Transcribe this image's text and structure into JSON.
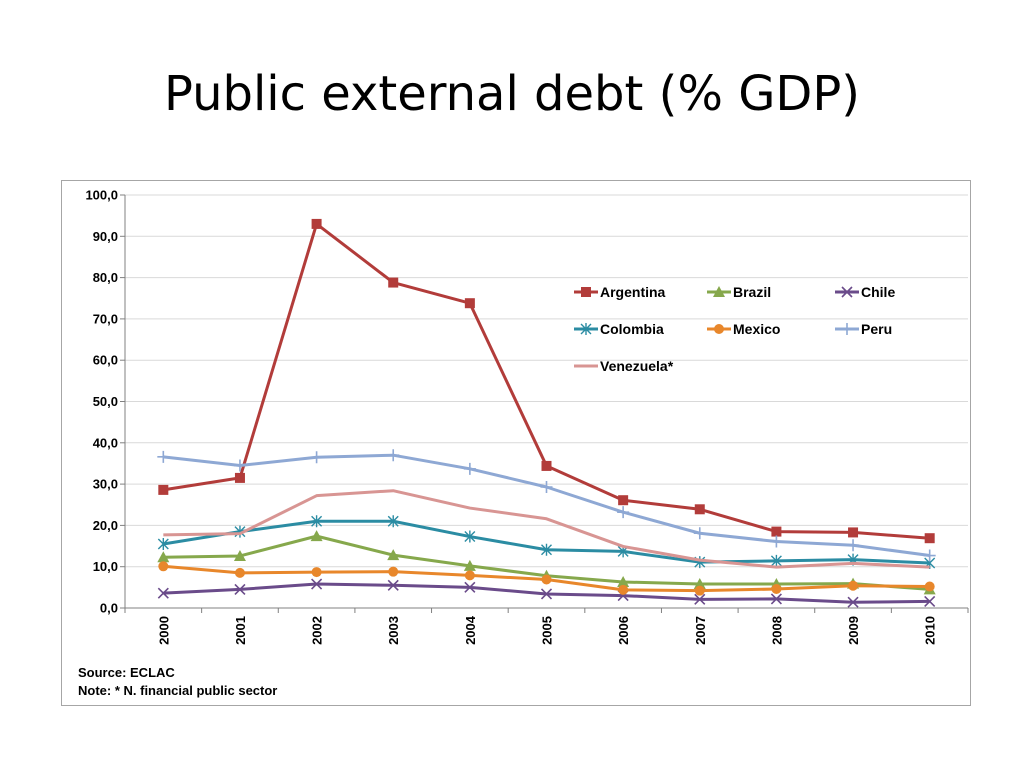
{
  "slide": {
    "title": "Public external debt (% GDP)"
  },
  "notes": {
    "source": "Source: ECLAC",
    "note": "Note: * N. financial public sector"
  },
  "chart_data": {
    "type": "line",
    "title": "",
    "xlabel": "",
    "ylabel": "",
    "x": [
      "2000",
      "2001",
      "2002",
      "2003",
      "2004",
      "2005",
      "2006",
      "2007",
      "2008",
      "2009",
      "2010"
    ],
    "ylim": [
      0,
      100
    ],
    "yticks": [
      "0,0",
      "10,0",
      "20,0",
      "30,0",
      "40,0",
      "50,0",
      "60,0",
      "70,0",
      "80,0",
      "90,0",
      "100,0"
    ],
    "grid": true,
    "legend_position": "top-right",
    "series": [
      {
        "name": "Argentina",
        "color": "#b23c3a",
        "marker": "square",
        "values": [
          28.6,
          31.5,
          93.0,
          78.8,
          73.8,
          34.4,
          26.1,
          23.9,
          18.5,
          18.3,
          16.9
        ]
      },
      {
        "name": "Brazil",
        "color": "#86a84c",
        "marker": "triangle",
        "values": [
          12.3,
          12.6,
          17.4,
          12.8,
          10.2,
          7.8,
          6.3,
          5.8,
          5.8,
          5.9,
          4.5
        ]
      },
      {
        "name": "Chile",
        "color": "#6a4b8a",
        "marker": "x",
        "values": [
          3.6,
          4.5,
          5.8,
          5.5,
          5.0,
          3.4,
          3.0,
          2.1,
          2.2,
          1.4,
          1.6
        ]
      },
      {
        "name": "Colombia",
        "color": "#2b8ca3",
        "marker": "asterisk",
        "values": [
          15.5,
          18.5,
          21.0,
          21.0,
          17.3,
          14.1,
          13.7,
          11.1,
          11.4,
          11.7,
          10.9
        ]
      },
      {
        "name": "Mexico",
        "color": "#e8872b",
        "marker": "circle",
        "values": [
          10.1,
          8.5,
          8.7,
          8.8,
          7.9,
          6.9,
          4.4,
          4.2,
          4.6,
          5.4,
          5.2
        ]
      },
      {
        "name": "Peru",
        "color": "#8ea8d4",
        "marker": "plus",
        "values": [
          36.6,
          34.5,
          36.5,
          37.0,
          33.7,
          29.3,
          23.2,
          18.1,
          16.1,
          15.2,
          12.7
        ]
      },
      {
        "name": "Venezuela*",
        "color": "#d89593",
        "marker": "none",
        "values": [
          17.7,
          18.0,
          27.2,
          28.4,
          24.2,
          21.6,
          14.9,
          11.6,
          9.9,
          10.8,
          9.9
        ]
      }
    ]
  }
}
